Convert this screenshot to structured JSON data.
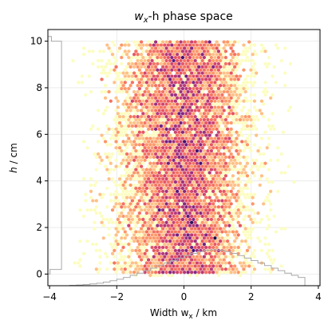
{
  "chart_data": {
    "type": "heatmap",
    "subtype": "hexbin",
    "title_parts": [
      "w",
      "x",
      "-h phase space"
    ],
    "xlabel_parts": [
      "Width   w",
      "x",
      " / km"
    ],
    "ylabel_parts": [
      "h",
      " / cm"
    ],
    "xlim": [
      -4.05,
      4.05
    ],
    "ylim": [
      -0.5,
      10.5
    ],
    "xticks": [
      -4,
      -2,
      0,
      2,
      4
    ],
    "xtick_labels": [
      "−4",
      "−2",
      "0",
      "2",
      "4"
    ],
    "yticks": [
      0,
      2,
      4,
      6,
      8,
      10
    ],
    "ytick_labels": [
      "0",
      "2",
      "4",
      "6",
      "8",
      "10"
    ],
    "grid": true,
    "colormap": "magma_r",
    "colormap_stops": [
      "#fcfdbf",
      "#feca8d",
      "#fd9668",
      "#f1605d",
      "#cd4071",
      "#9e2f7f",
      "#721f81",
      "#440f76",
      "#180f3d"
    ],
    "marginal_color": "#aaaaaa",
    "x_distribution": {
      "mean": 0.0,
      "std": 1.0,
      "range": [
        -3.6,
        3.6
      ]
    },
    "y_distribution": {
      "type": "uniform",
      "range": [
        0.0,
        10.0
      ]
    },
    "n_points": 9000,
    "y_marginal_hist": {
      "bins": [
        [
          -0.5,
          0.0
        ],
        [
          0.0,
          0.2
        ],
        [
          0.2,
          10.0
        ],
        [
          10.0,
          10.2
        ],
        [
          10.2,
          10.5
        ]
      ],
      "widths": [
        0.0,
        0.15,
        0.95,
        0.25,
        0.0
      ]
    },
    "x_marginal_hist": {
      "bin_width": 0.2,
      "x_start": -3.6,
      "heights": [
        0.0,
        0.01,
        0.02,
        0.03,
        0.05,
        0.07,
        0.1,
        0.14,
        0.18,
        0.23,
        0.29,
        0.35,
        0.42,
        0.49,
        0.56,
        0.63,
        0.7,
        0.77,
        0.84,
        0.9,
        0.95,
        0.99,
        1.0,
        0.99,
        0.95,
        0.9,
        0.84,
        0.77,
        0.7,
        0.63,
        0.56,
        0.49,
        0.42,
        0.35,
        0.29,
        0.23
      ]
    }
  }
}
